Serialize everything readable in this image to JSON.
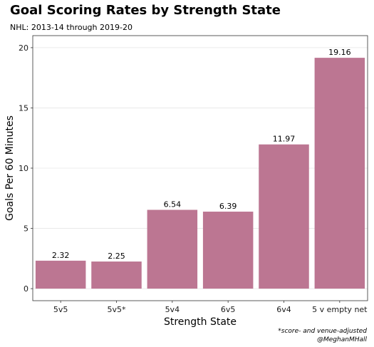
{
  "chart_data": {
    "type": "bar",
    "title": "Goal Scoring Rates by Strength State",
    "subtitle": "NHL: 2013-14 through 2019-20",
    "xlabel": "Strength State",
    "ylabel": "Goals Per 60 Minutes",
    "categories": [
      "5v5",
      "5v5*",
      "5v4",
      "6v5",
      "6v4",
      "5 v empty net"
    ],
    "values": [
      2.32,
      2.25,
      6.54,
      6.39,
      11.97,
      19.16
    ],
    "data_labels": [
      "2.32",
      "2.25",
      "6.54",
      "6.39",
      "11.97",
      "19.16"
    ],
    "ylim": [
      -1,
      21
    ],
    "yticks": [
      0,
      5,
      10,
      15,
      20
    ],
    "ytick_labels": [
      "0",
      "5",
      "10",
      "15",
      "20"
    ],
    "grid": true,
    "legend": "none",
    "bar_color": "#bc7692",
    "grid_color": "#e6e6e6",
    "caption_lines": [
      "*score- and venue-adjusted",
      "@MeghanMHall"
    ]
  }
}
